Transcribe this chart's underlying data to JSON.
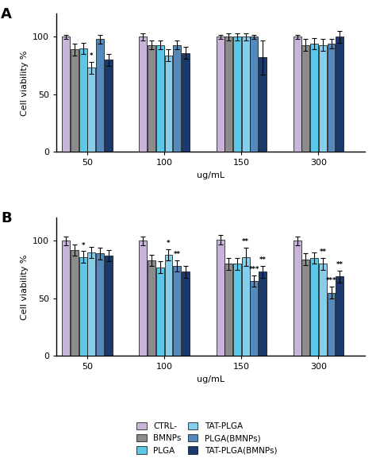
{
  "panel_A": {
    "groups": [
      50,
      100,
      150,
      300
    ],
    "values": [
      [
        100,
        89,
        90,
        73,
        98,
        80
      ],
      [
        100,
        93,
        93,
        84,
        93,
        86
      ],
      [
        100,
        100,
        100,
        100,
        100,
        82
      ],
      [
        100,
        93,
        94,
        93,
        94,
        100
      ]
    ],
    "errors": [
      [
        2,
        5,
        5,
        5,
        4,
        5
      ],
      [
        3,
        4,
        4,
        5,
        4,
        5
      ],
      [
        2,
        3,
        3,
        3,
        2,
        15
      ],
      [
        2,
        5,
        5,
        5,
        4,
        5
      ]
    ],
    "significance": [
      [
        "",
        "",
        "",
        "*",
        "",
        ""
      ],
      [
        "",
        "",
        "",
        "",
        "",
        ""
      ],
      [
        "",
        "",
        "",
        "",
        "",
        ""
      ],
      [
        "",
        "",
        "",
        "",
        "",
        ""
      ]
    ]
  },
  "panel_B": {
    "groups": [
      50,
      100,
      150,
      300
    ],
    "values": [
      [
        100,
        92,
        86,
        90,
        89,
        87
      ],
      [
        100,
        83,
        77,
        88,
        78,
        73
      ],
      [
        101,
        80,
        80,
        86,
        65,
        73
      ],
      [
        100,
        84,
        85,
        80,
        55,
        69
      ]
    ],
    "errors": [
      [
        4,
        5,
        5,
        5,
        5,
        5
      ],
      [
        4,
        5,
        5,
        5,
        5,
        5
      ],
      [
        4,
        5,
        5,
        8,
        5,
        5
      ],
      [
        4,
        5,
        5,
        5,
        5,
        5
      ]
    ],
    "significance": [
      [
        "",
        "",
        "*",
        "",
        "",
        ""
      ],
      [
        "",
        "",
        "",
        "*",
        "**",
        ""
      ],
      [
        "",
        "",
        "",
        "**",
        "***",
        "**"
      ],
      [
        "",
        "",
        "",
        "**",
        "***",
        "**"
      ]
    ]
  },
  "colors": [
    "#c8b4d8",
    "#8c8c8c",
    "#5bc8e8",
    "#87ceeb",
    "#5588bb",
    "#1a3a6e"
  ],
  "legend_labels": [
    "CTRL-",
    "BMNPs",
    "PLGA",
    "TAT-PLGA",
    "PLGA(BMNPs)",
    "TAT-PLGA(BMNPs)"
  ],
  "ylabel": "Cell viability %",
  "xlabel": "ug/mL",
  "ylim": [
    0,
    120
  ],
  "yticks": [
    0,
    50,
    100
  ],
  "bar_width": 0.11
}
